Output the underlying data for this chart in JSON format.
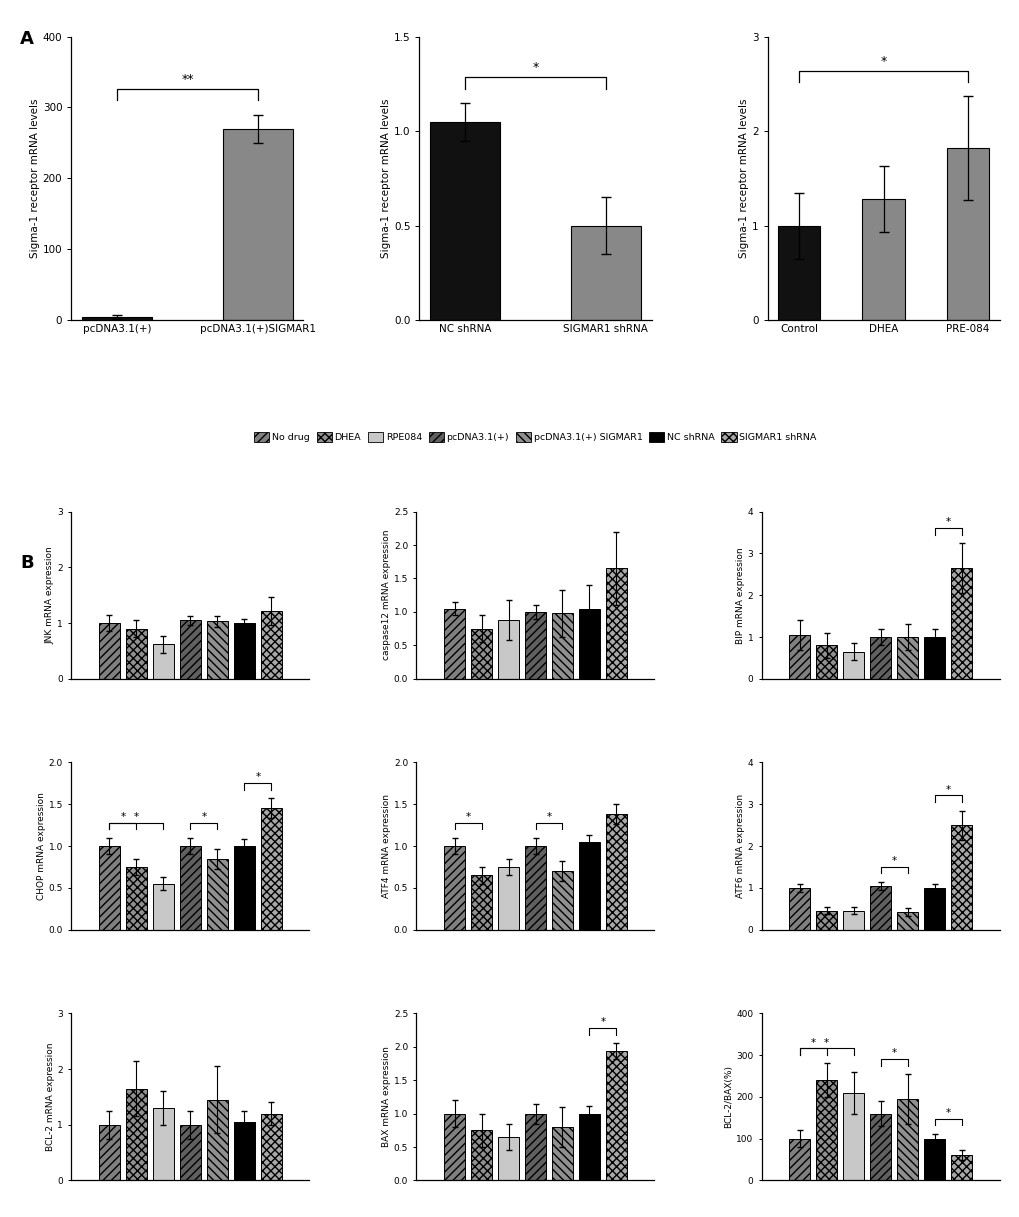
{
  "panel_A": {
    "plot1": {
      "categories": [
        "pcDNA3.1(+)",
        "pcDNA3.1(+)SIGMAR1"
      ],
      "values": [
        5,
        270
      ],
      "errors": [
        3,
        20
      ],
      "colors": [
        "#111111",
        "#888888"
      ],
      "ylabel": "Sigma-1 receptor mRNA levels",
      "ylim": [
        0,
        400
      ],
      "yticks": [
        0,
        100,
        200,
        300,
        400
      ],
      "sig_pairs": [
        [
          0,
          1,
          "**"
        ]
      ]
    },
    "plot2": {
      "categories": [
        "NC shRNA",
        "SIGMAR1 shRNA"
      ],
      "values": [
        1.05,
        0.5
      ],
      "errors": [
        0.1,
        0.15
      ],
      "colors": [
        "#111111",
        "#888888"
      ],
      "ylabel": "Sigma-1 receptor mRNA levels",
      "ylim": [
        0,
        1.5
      ],
      "yticks": [
        0.0,
        0.5,
        1.0,
        1.5
      ],
      "sig_pairs": [
        [
          0,
          1,
          "*"
        ]
      ]
    },
    "plot3": {
      "categories": [
        "Control",
        "DHEA",
        "PRE-084"
      ],
      "values": [
        1.0,
        1.28,
        1.82
      ],
      "errors": [
        0.35,
        0.35,
        0.55
      ],
      "colors": [
        "#111111",
        "#888888",
        "#888888"
      ],
      "ylabel": "Sigma-1 receptor mRNA levels",
      "ylim": [
        0,
        3
      ],
      "yticks": [
        0,
        1,
        2,
        3
      ],
      "sig_pairs": [
        [
          0,
          2,
          "*"
        ]
      ]
    }
  },
  "legend_labels": [
    "No drug",
    "DHEA",
    "RPE084",
    "pcDNA3.1(+)",
    "pcDNA3.1(+) SIGMAR1",
    "NC shRNA",
    "SIGMAR1 shRNA"
  ],
  "panel_B": {
    "JNK": {
      "values": [
        1.0,
        0.9,
        0.62,
        1.05,
        1.03,
        1.0,
        1.22
      ],
      "errors": [
        0.15,
        0.15,
        0.15,
        0.08,
        0.1,
        0.08,
        0.25
      ],
      "ylabel": "JNK mRNA expression",
      "ylim": [
        0,
        3
      ],
      "yticks": [
        0,
        1,
        2,
        3
      ],
      "sig_pairs": []
    },
    "caspase12": {
      "values": [
        1.05,
        0.75,
        0.88,
        1.0,
        0.98,
        1.05,
        1.65
      ],
      "errors": [
        0.1,
        0.2,
        0.3,
        0.1,
        0.35,
        0.35,
        0.55
      ],
      "ylabel": "caspase12 mRNA expression",
      "ylim": [
        0.0,
        2.5
      ],
      "yticks": [
        0.0,
        0.5,
        1.0,
        1.5,
        2.0,
        2.5
      ],
      "sig_pairs": []
    },
    "BIP": {
      "values": [
        1.05,
        0.8,
        0.65,
        1.0,
        1.0,
        1.0,
        2.65
      ],
      "errors": [
        0.35,
        0.3,
        0.2,
        0.2,
        0.3,
        0.2,
        0.6
      ],
      "ylabel": "BIP mRNA expression",
      "ylim": [
        0,
        4
      ],
      "yticks": [
        0,
        1,
        2,
        3,
        4
      ],
      "sig_pairs": [
        [
          5,
          6,
          "*"
        ]
      ]
    },
    "CHOP": {
      "values": [
        1.0,
        0.75,
        0.55,
        1.0,
        0.85,
        1.0,
        1.45
      ],
      "errors": [
        0.1,
        0.1,
        0.08,
        0.1,
        0.12,
        0.08,
        0.12
      ],
      "ylabel": "CHOP mRNA expression",
      "ylim": [
        0,
        2.0
      ],
      "yticks": [
        0.0,
        0.5,
        1.0,
        1.5,
        2.0
      ],
      "sig_pairs": [
        [
          0,
          1,
          "*"
        ],
        [
          0,
          2,
          "*"
        ],
        [
          3,
          4,
          "*"
        ],
        [
          5,
          6,
          "*"
        ]
      ]
    },
    "ATF4": {
      "values": [
        1.0,
        0.65,
        0.75,
        1.0,
        0.7,
        1.05,
        1.38
      ],
      "errors": [
        0.1,
        0.1,
        0.1,
        0.1,
        0.12,
        0.08,
        0.12
      ],
      "ylabel": "ATF4 mRNA expression",
      "ylim": [
        0,
        2.0
      ],
      "yticks": [
        0.0,
        0.5,
        1.0,
        1.5,
        2.0
      ],
      "sig_pairs": [
        [
          0,
          1,
          "*"
        ],
        [
          3,
          4,
          "*"
        ]
      ]
    },
    "ATF6": {
      "values": [
        1.0,
        0.45,
        0.45,
        1.05,
        0.42,
        1.0,
        2.5
      ],
      "errors": [
        0.1,
        0.08,
        0.08,
        0.1,
        0.1,
        0.1,
        0.35
      ],
      "ylabel": "ATF6 mRNA expression",
      "ylim": [
        0,
        4
      ],
      "yticks": [
        0,
        1,
        2,
        3,
        4
      ],
      "sig_pairs": [
        [
          3,
          4,
          "*"
        ],
        [
          5,
          6,
          "*"
        ]
      ]
    },
    "BCL2": {
      "values": [
        1.0,
        1.65,
        1.3,
        1.0,
        1.45,
        1.05,
        1.2
      ],
      "errors": [
        0.25,
        0.5,
        0.3,
        0.25,
        0.6,
        0.2,
        0.2
      ],
      "ylabel": "BCL-2 mRNA expression",
      "ylim": [
        0,
        3
      ],
      "yticks": [
        0,
        1,
        2,
        3
      ],
      "sig_pairs": []
    },
    "BAX": {
      "values": [
        1.0,
        0.75,
        0.65,
        1.0,
        0.8,
        1.0,
        1.93
      ],
      "errors": [
        0.2,
        0.25,
        0.2,
        0.15,
        0.3,
        0.12,
        0.12
      ],
      "ylabel": "BAX mRNA expression",
      "ylim": [
        0,
        2.5
      ],
      "yticks": [
        0.0,
        0.5,
        1.0,
        1.5,
        2.0,
        2.5
      ],
      "sig_pairs": [
        [
          5,
          6,
          "*"
        ]
      ]
    },
    "BCL2BAX": {
      "values": [
        100,
        240,
        210,
        160,
        195,
        100,
        60
      ],
      "errors": [
        20,
        40,
        50,
        30,
        60,
        12,
        12
      ],
      "ylabel": "BCL-2/BAX(%)",
      "ylim": [
        0,
        400
      ],
      "yticks": [
        0,
        100,
        200,
        300,
        400
      ],
      "sig_pairs": [
        [
          0,
          1,
          "*"
        ],
        [
          0,
          2,
          "*"
        ],
        [
          3,
          4,
          "*"
        ],
        [
          5,
          6,
          "*"
        ]
      ]
    }
  }
}
